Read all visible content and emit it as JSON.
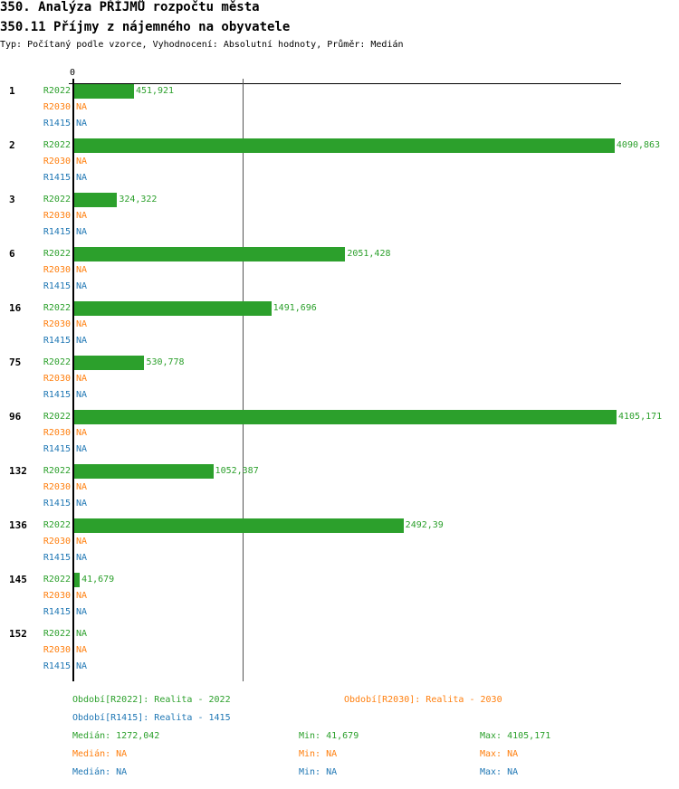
{
  "header": {
    "title": "350. Analýza PŘÍJMŮ rozpočtu města",
    "subtitle": "350.11 Příjmy z nájemného na obyvatele",
    "info": "Typ: Počítaný podle vzorce, Vyhodnocení: Absolutní hodnoty, Průměr: Medián"
  },
  "colors": {
    "R2022": "#2ca02c",
    "R2030": "#ff7f0e",
    "R1415": "#1f77b4"
  },
  "chart_data": {
    "type": "bar",
    "orientation": "horizontal",
    "xlim": [
      0,
      4105.171
    ],
    "x_tick_labels": [
      "0"
    ],
    "median_line": 1272.042,
    "series_names": [
      "R2022",
      "R2030",
      "R1415"
    ],
    "categories": [
      "1",
      "2",
      "3",
      "6",
      "16",
      "75",
      "96",
      "132",
      "136",
      "145",
      "152"
    ],
    "series": [
      {
        "name": "R2022",
        "values": [
          451.921,
          4090.863,
          324.322,
          2051.428,
          1491.696,
          530.778,
          4105.171,
          1052.387,
          2492.39,
          41.679,
          null
        ],
        "labels": [
          "451,921",
          "4090,863",
          "324,322",
          "2051,428",
          "1491,696",
          "530,778",
          "4105,171",
          "1052,387",
          "2492,39",
          "41,679",
          "NA"
        ]
      },
      {
        "name": "R2030",
        "values": [
          null,
          null,
          null,
          null,
          null,
          null,
          null,
          null,
          null,
          null,
          null
        ],
        "labels": [
          "NA",
          "NA",
          "NA",
          "NA",
          "NA",
          "NA",
          "NA",
          "NA",
          "NA",
          "NA",
          "NA"
        ]
      },
      {
        "name": "R1415",
        "values": [
          null,
          null,
          null,
          null,
          null,
          null,
          null,
          null,
          null,
          null,
          null
        ],
        "labels": [
          "NA",
          "NA",
          "NA",
          "NA",
          "NA",
          "NA",
          "NA",
          "NA",
          "NA",
          "NA",
          "NA"
        ]
      }
    ]
  },
  "legend": {
    "r2022": "Období[R2022]: Realita - 2022",
    "r2030": "Období[R2030]: Realita - 2030",
    "r1415": "Období[R1415]: Realita - 1415"
  },
  "stats": [
    {
      "median": "Medián: 1272,042",
      "min": "Min: 41,679",
      "max": "Max: 4105,171"
    },
    {
      "median": "Medián: NA",
      "min": "Min: NA",
      "max": "Max: NA"
    },
    {
      "median": "Medián: NA",
      "min": "Min: NA",
      "max": "Max: NA"
    }
  ]
}
